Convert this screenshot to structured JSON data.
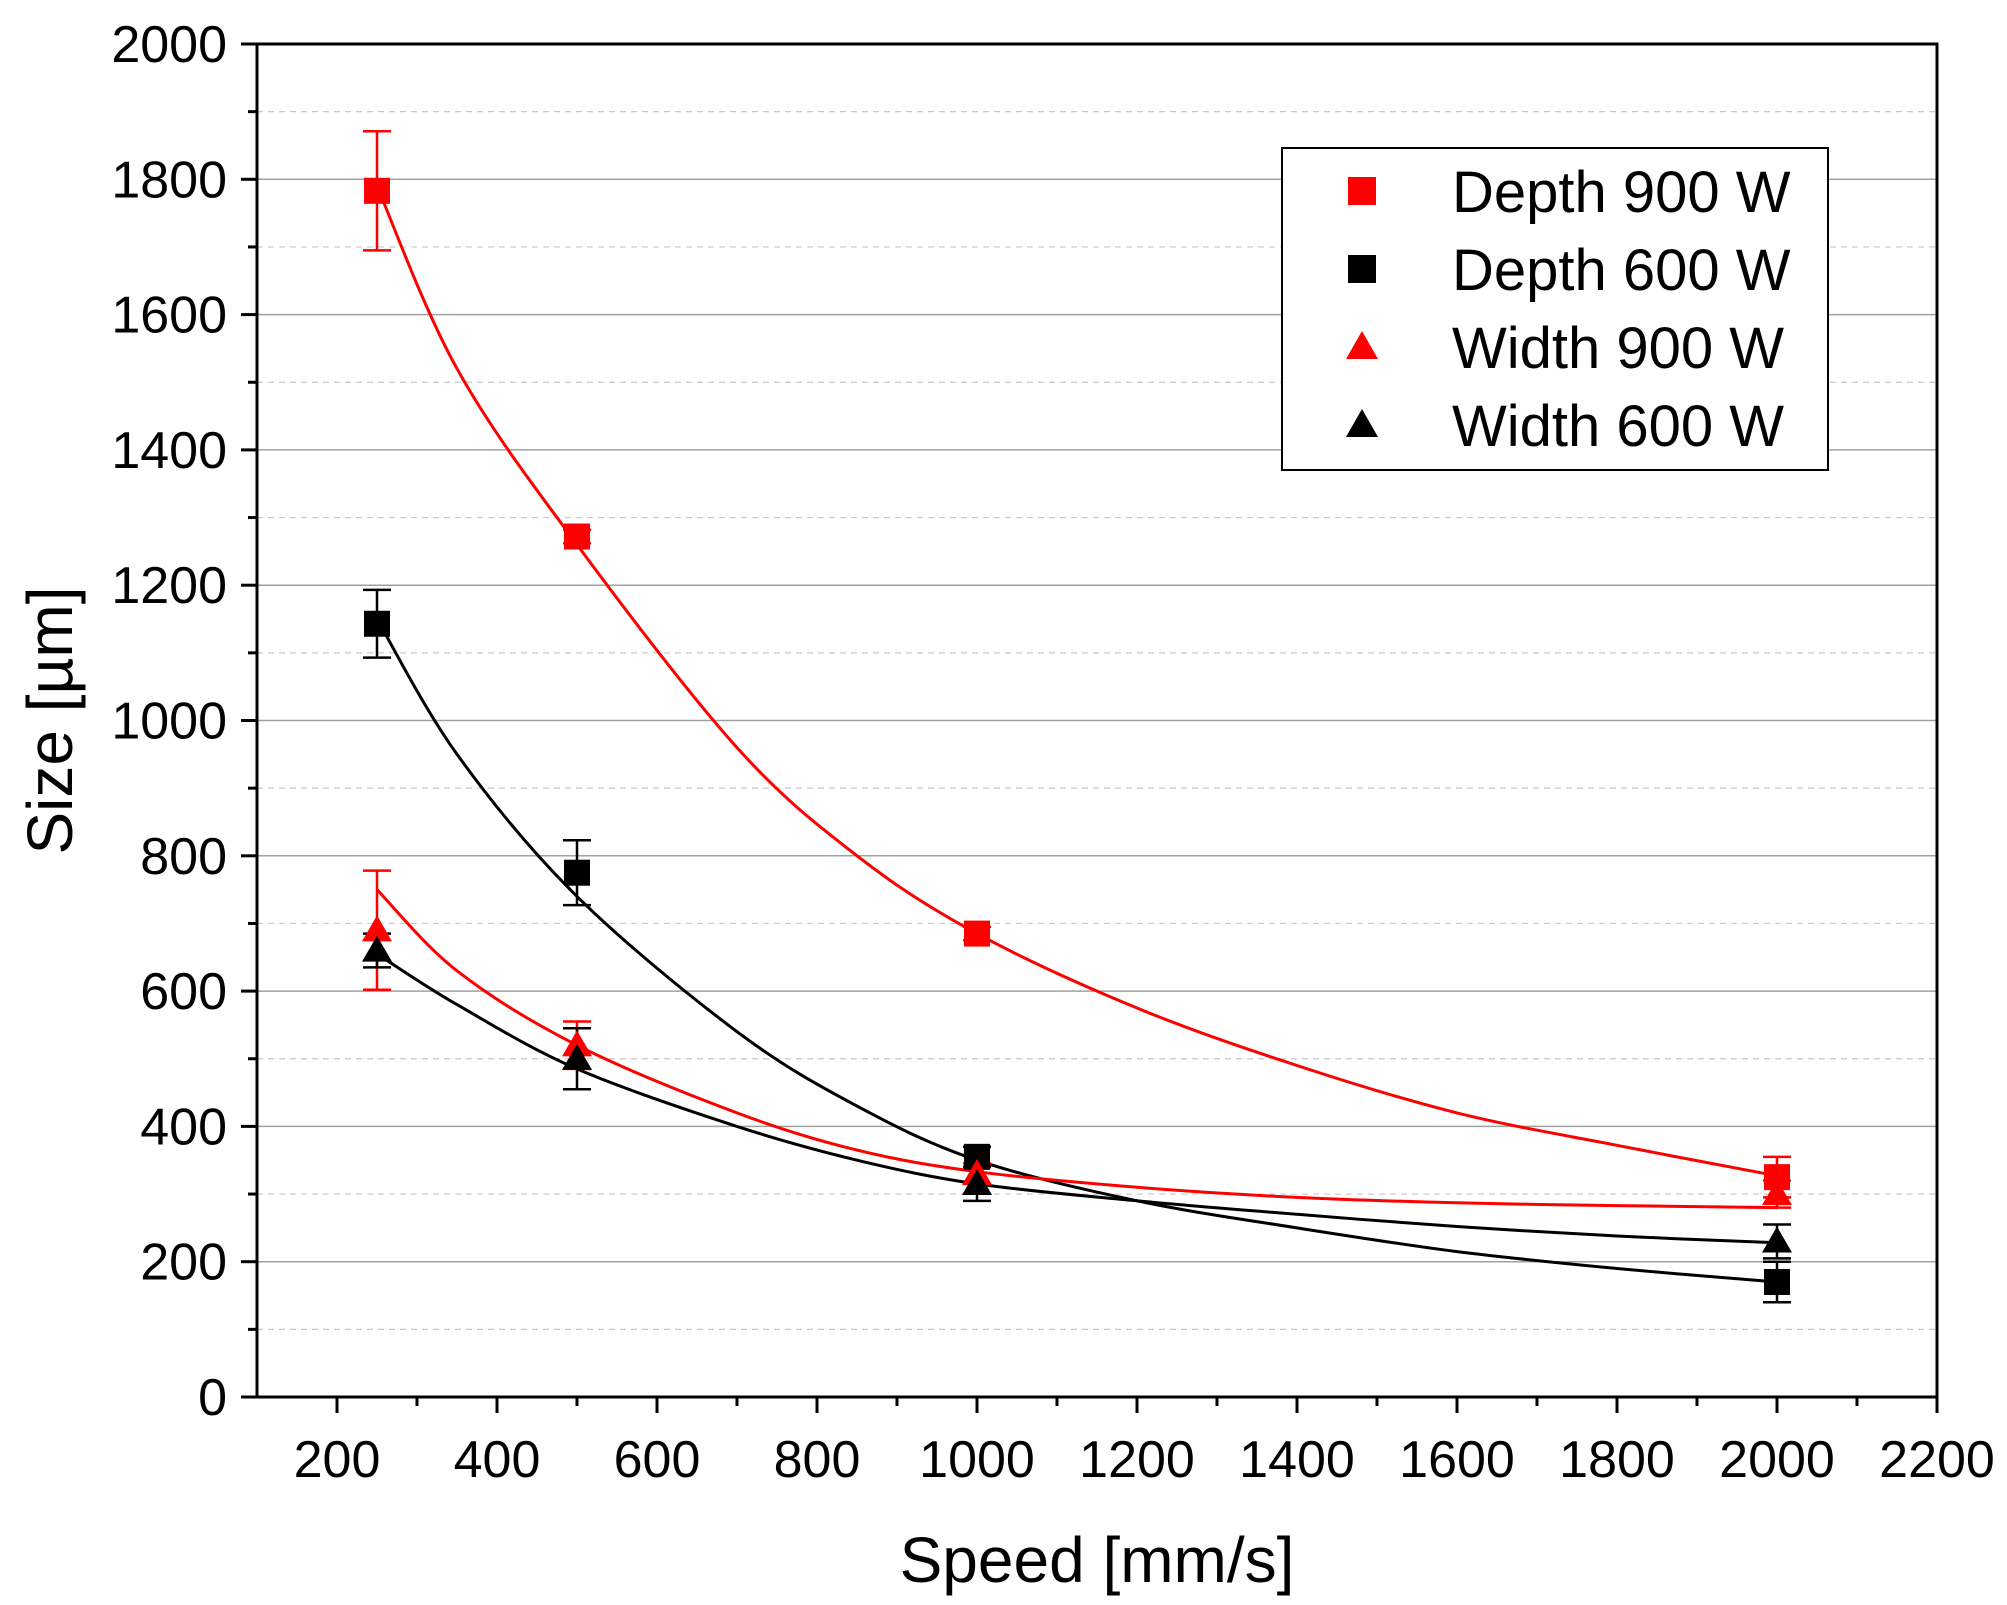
{
  "chart_data": {
    "type": "scatter",
    "title": "",
    "xlabel": "Speed [mm/s]",
    "ylabel": "Size [µm]",
    "xlim": [
      100,
      2200
    ],
    "ylim": [
      0,
      2000
    ],
    "xticks": [
      200,
      400,
      600,
      800,
      1000,
      1200,
      1400,
      1600,
      1800,
      2000,
      2200
    ],
    "yticks": [
      0,
      200,
      400,
      600,
      800,
      1000,
      1200,
      1400,
      1600,
      1800,
      2000
    ],
    "grid": true,
    "legend_position": "top-right",
    "series": [
      {
        "name": "Depth 900 W",
        "color": "#ff0000",
        "marker": "square",
        "x": [
          250,
          500,
          1000,
          2000
        ],
        "y": [
          1783,
          1272,
          685,
          325
        ],
        "err": [
          88,
          10,
          10,
          30
        ],
        "fit": [
          [
            250,
            1790
          ],
          [
            350,
            1520
          ],
          [
            500,
            1260
          ],
          [
            700,
            960
          ],
          [
            850,
            800
          ],
          [
            1000,
            685
          ],
          [
            1200,
            575
          ],
          [
            1400,
            490
          ],
          [
            1600,
            420
          ],
          [
            1800,
            372
          ],
          [
            2000,
            327
          ]
        ]
      },
      {
        "name": "Depth 600 W",
        "color": "#000000",
        "marker": "square",
        "x": [
          250,
          500,
          1000,
          2000
        ],
        "y": [
          1143,
          775,
          355,
          170
        ],
        "err": [
          50,
          48,
          15,
          30
        ],
        "fit": [
          [
            250,
            1150
          ],
          [
            350,
            950
          ],
          [
            500,
            740
          ],
          [
            700,
            540
          ],
          [
            850,
            430
          ],
          [
            1000,
            350
          ],
          [
            1200,
            290
          ],
          [
            1400,
            250
          ],
          [
            1600,
            215
          ],
          [
            1800,
            190
          ],
          [
            2000,
            170
          ]
        ]
      },
      {
        "name": "Width 900 W",
        "color": "#ff0000",
        "marker": "triangle",
        "x": [
          250,
          500,
          1000,
          2000
        ],
        "y": [
          690,
          520,
          330,
          300
        ],
        "err": [
          88,
          35,
          15,
          20
        ],
        "fit": [
          [
            250,
            750
          ],
          [
            350,
            630
          ],
          [
            500,
            520
          ],
          [
            700,
            420
          ],
          [
            850,
            365
          ],
          [
            1000,
            333
          ],
          [
            1200,
            310
          ],
          [
            1400,
            295
          ],
          [
            1600,
            287
          ],
          [
            1800,
            283
          ],
          [
            2000,
            280
          ]
        ]
      },
      {
        "name": "Width 600 W",
        "color": "#000000",
        "marker": "triangle",
        "x": [
          250,
          500,
          1000,
          2000
        ],
        "y": [
          660,
          500,
          315,
          230
        ],
        "err": [
          25,
          45,
          25,
          25
        ],
        "fit": [
          [
            250,
            655
          ],
          [
            350,
            580
          ],
          [
            500,
            485
          ],
          [
            700,
            400
          ],
          [
            850,
            350
          ],
          [
            1000,
            315
          ],
          [
            1200,
            290
          ],
          [
            1400,
            270
          ],
          [
            1600,
            252
          ],
          [
            1800,
            238
          ],
          [
            2000,
            228
          ]
        ]
      }
    ]
  }
}
